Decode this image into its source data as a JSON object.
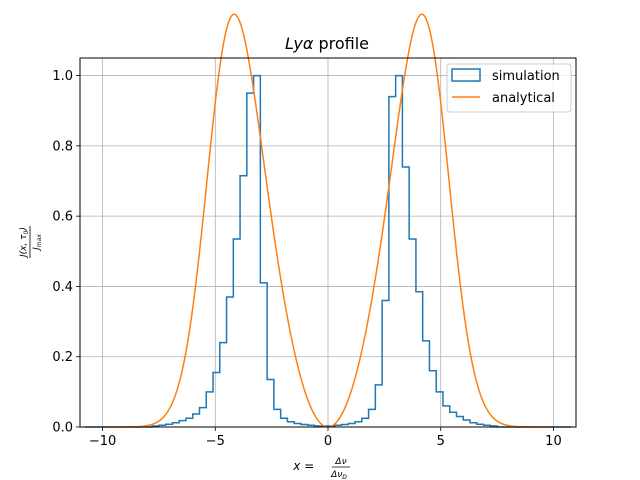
{
  "chart_data": {
    "type": "histogram+line",
    "title": "Lyα profile",
    "title_parts": {
      "italic": "Lyα",
      "rest": " profile"
    },
    "xlabel": "x = Δν/Δν_D",
    "xlabel_parts": {
      "lhs": "x = ",
      "num": "Δν",
      "den": "Δν",
      "den_sub": "D"
    },
    "ylabel": "J(x, τ0) / J_max",
    "ylabel_parts": {
      "num": "J(x, τ",
      "num_sub": "0",
      "num_end": ")",
      "den": "J",
      "den_sub": "max"
    },
    "xlim": [
      -11.0,
      11.0
    ],
    "ylim": [
      0.0,
      1.05
    ],
    "xticks": [
      -10,
      -5,
      0,
      5,
      10
    ],
    "xtick_labels": [
      "−10",
      "−5",
      "0",
      "5",
      "10"
    ],
    "yticks": [
      0.0,
      0.2,
      0.4,
      0.6,
      0.8,
      1.0
    ],
    "ytick_labels": [
      "0.0",
      "0.2",
      "0.4",
      "0.6",
      "0.8",
      "1.0"
    ],
    "grid": true,
    "legend_position": "top-right",
    "series": [
      {
        "name": "simulation",
        "kind": "step-histogram",
        "color": "#1f77b4",
        "bin_width": 0.3,
        "bin_edges_start": -10.8,
        "counts": [
          0.0,
          0.0,
          0.0,
          0.0,
          0.0,
          0.0,
          0.0,
          0.0,
          0.0,
          0.0,
          0.003,
          0.005,
          0.008,
          0.012,
          0.018,
          0.025,
          0.037,
          0.055,
          0.1,
          0.155,
          0.24,
          0.37,
          0.535,
          0.715,
          0.95,
          1.0,
          0.41,
          0.135,
          0.05,
          0.025,
          0.015,
          0.01,
          0.007,
          0.005,
          0.003,
          0.003,
          0.003,
          0.005,
          0.007,
          0.01,
          0.015,
          0.025,
          0.05,
          0.12,
          0.36,
          0.94,
          1.0,
          0.74,
          0.535,
          0.385,
          0.245,
          0.16,
          0.1,
          0.06,
          0.042,
          0.03,
          0.02,
          0.012,
          0.008,
          0.005,
          0.003,
          0.0,
          0.0,
          0.0,
          0.0,
          0.0,
          0.0,
          0.0,
          0.0,
          0.0,
          0.0,
          0.0
        ]
      },
      {
        "name": "analytical",
        "kind": "line",
        "color": "#ff7f0e",
        "peak_x": 3.4,
        "x_range": [
          -10,
          10
        ]
      }
    ]
  },
  "colors": {
    "grid": "#b0b0b0",
    "axes": "#000000"
  }
}
